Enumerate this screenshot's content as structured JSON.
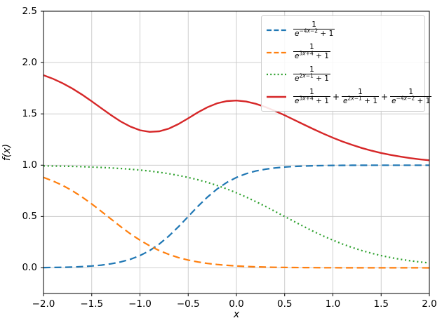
{
  "chart_data": {
    "type": "line",
    "title": "",
    "xlabel": "x",
    "ylabel": "f(x)",
    "xlim": [
      -2,
      2
    ],
    "ylim": [
      -0.25,
      2.5
    ],
    "grid": true,
    "legend_position": "upper right",
    "xticks": [
      -2.0,
      -1.5,
      -1.0,
      -0.5,
      0.0,
      0.5,
      1.0,
      1.5,
      2.0
    ],
    "xtick_labels": [
      "−2.0",
      "−1.5",
      "−1.0",
      "−0.5",
      "0.0",
      "0.5",
      "1.0",
      "1.5",
      "2.0"
    ],
    "yticks": [
      0.0,
      0.5,
      1.0,
      1.5,
      2.0,
      2.5
    ],
    "ytick_labels": [
      "0.0",
      "0.5",
      "1.0",
      "1.5",
      "2.0",
      "2.5"
    ],
    "legend_fraction": {
      "numerator": "1",
      "den_base": "e",
      "den_suffix": " + 1"
    },
    "x": [
      -2.0,
      -1.9,
      -1.8,
      -1.7,
      -1.6,
      -1.5,
      -1.4,
      -1.3,
      -1.2,
      -1.1,
      -1.0,
      -0.9,
      -0.8,
      -0.7,
      -0.6,
      -0.5,
      -0.4,
      -0.3,
      -0.2,
      -0.1,
      0.0,
      0.1,
      0.2,
      0.3,
      0.4,
      0.5,
      0.6,
      0.7,
      0.8,
      0.9,
      1.0,
      1.1,
      1.2,
      1.3,
      1.4,
      1.5,
      1.6,
      1.7,
      1.8,
      1.9,
      2.0
    ],
    "series": [
      {
        "name": "sigmoid-neg4x-2",
        "exponents": [
          "−4x−2"
        ],
        "color": "#1f77b4",
        "style": "dashed",
        "width": 2.2,
        "values": [
          0.0025,
          0.0037,
          0.0055,
          0.0082,
          0.0121,
          0.018,
          0.0266,
          0.0392,
          0.0573,
          0.0832,
          0.1192,
          0.168,
          0.2315,
          0.31,
          0.4013,
          0.5,
          0.5987,
          0.69,
          0.7685,
          0.832,
          0.8808,
          0.9168,
          0.9427,
          0.9608,
          0.9734,
          0.982,
          0.9879,
          0.9918,
          0.9945,
          0.9963,
          0.9975,
          0.9983,
          0.9989,
          0.9993,
          0.9995,
          0.9997,
          0.9998,
          0.9998,
          0.9999,
          0.9999,
          1.0
        ]
      },
      {
        "name": "sigmoid-3x+4",
        "exponents": [
          "3x+4"
        ],
        "color": "#ff7f0e",
        "style": "dashed",
        "width": 2.2,
        "values": [
          0.8808,
          0.8455,
          0.8022,
          0.7503,
          0.69,
          0.6225,
          0.5498,
          0.475,
          0.4013,
          0.3318,
          0.2689,
          0.2142,
          0.168,
          0.1301,
          0.0998,
          0.0759,
          0.0573,
          0.0431,
          0.0323,
          0.0241,
          0.018,
          0.0134,
          0.01,
          0.0074,
          0.0055,
          0.0041,
          0.003,
          0.0022,
          0.0017,
          0.0012,
          0.0009,
          0.0007,
          0.0005,
          0.0004,
          0.0003,
          0.0002,
          0.0002,
          0.0001,
          0.0001,
          0.0001,
          0.0
        ]
      },
      {
        "name": "sigmoid-2x-1",
        "exponents": [
          "2x−1"
        ],
        "color": "#2ca02c",
        "style": "dotted",
        "width": 2.2,
        "values": [
          0.9933,
          0.9918,
          0.99,
          0.9879,
          0.9852,
          0.982,
          0.9781,
          0.9734,
          0.9677,
          0.9608,
          0.9526,
          0.9427,
          0.9309,
          0.9168,
          0.9002,
          0.8808,
          0.8581,
          0.832,
          0.8022,
          0.7685,
          0.7311,
          0.69,
          0.6457,
          0.5987,
          0.5498,
          0.5,
          0.4502,
          0.4013,
          0.3543,
          0.31,
          0.2689,
          0.2315,
          0.1978,
          0.168,
          0.1419,
          0.1192,
          0.0998,
          0.0832,
          0.0691,
          0.0573,
          0.0474
        ]
      },
      {
        "name": "sum-of-sigmoids",
        "exponents": [
          "3x+4",
          "2x−1",
          "−4x−2"
        ],
        "color": "#d62728",
        "style": "solid",
        "width": 2.4,
        "values": [
          1.8766,
          1.841,
          1.7977,
          1.7464,
          1.6873,
          1.6225,
          1.5545,
          1.4876,
          1.4263,
          1.3758,
          1.3407,
          1.3249,
          1.3304,
          1.3569,
          1.4013,
          1.4567,
          1.5141,
          1.5651,
          1.603,
          1.6246,
          1.6299,
          1.6202,
          1.5984,
          1.5669,
          1.5287,
          1.4861,
          1.4411,
          1.3953,
          1.3505,
          1.3075,
          1.2673,
          1.2305,
          1.1972,
          1.1677,
          1.1417,
          1.1191,
          1.0998,
          1.0831,
          1.0691,
          1.0573,
          1.0474
        ]
      }
    ]
  },
  "colors": {
    "grid": "#c8c8c8",
    "frame": "#000000",
    "legend_border": "#cccccc"
  }
}
